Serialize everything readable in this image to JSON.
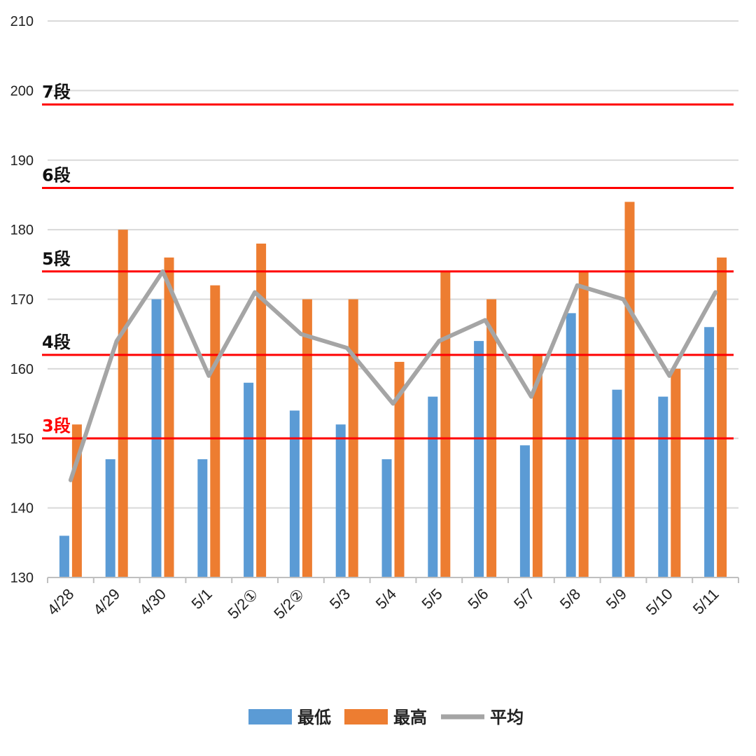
{
  "chart_data": {
    "type": "bar",
    "categories": [
      "4/28",
      "4/29",
      "4/30",
      "5/1",
      "5/2①",
      "5/2②",
      "5/3",
      "5/4",
      "5/5",
      "5/6",
      "5/7",
      "5/8",
      "5/9",
      "5/10",
      "5/11"
    ],
    "series": [
      {
        "name": "最低",
        "type": "bar",
        "color": "#5B9BD5",
        "values": [
          136,
          147,
          170,
          147,
          158,
          154,
          152,
          147,
          156,
          164,
          149,
          168,
          157,
          156,
          166
        ]
      },
      {
        "name": "最高",
        "type": "bar",
        "color": "#ED7D31",
        "values": [
          152,
          180,
          176,
          172,
          178,
          170,
          170,
          161,
          174,
          170,
          162,
          174,
          184,
          160,
          176
        ]
      },
      {
        "name": "平均",
        "type": "line",
        "color": "#A5A5A5",
        "values": [
          144,
          164,
          174,
          159,
          171,
          165,
          163,
          155,
          164,
          167,
          156,
          172,
          170,
          159,
          171
        ]
      }
    ],
    "ylim": [
      130,
      210
    ],
    "yticks": [
      130,
      140,
      150,
      160,
      170,
      180,
      190,
      200,
      210
    ],
    "grid": true,
    "legend_position": "bottom",
    "reference_lines": [
      {
        "label": "7段",
        "value": 198,
        "color": "#FF0000",
        "label_color": "#111111"
      },
      {
        "label": "6段",
        "value": 186,
        "color": "#FF0000",
        "label_color": "#111111"
      },
      {
        "label": "5段",
        "value": 174,
        "color": "#FF0000",
        "label_color": "#111111"
      },
      {
        "label": "4段",
        "value": 162,
        "color": "#FF0000",
        "label_color": "#111111"
      },
      {
        "label": "3段",
        "value": 150,
        "color": "#FF0000",
        "label_color": "#FF0000"
      }
    ]
  }
}
